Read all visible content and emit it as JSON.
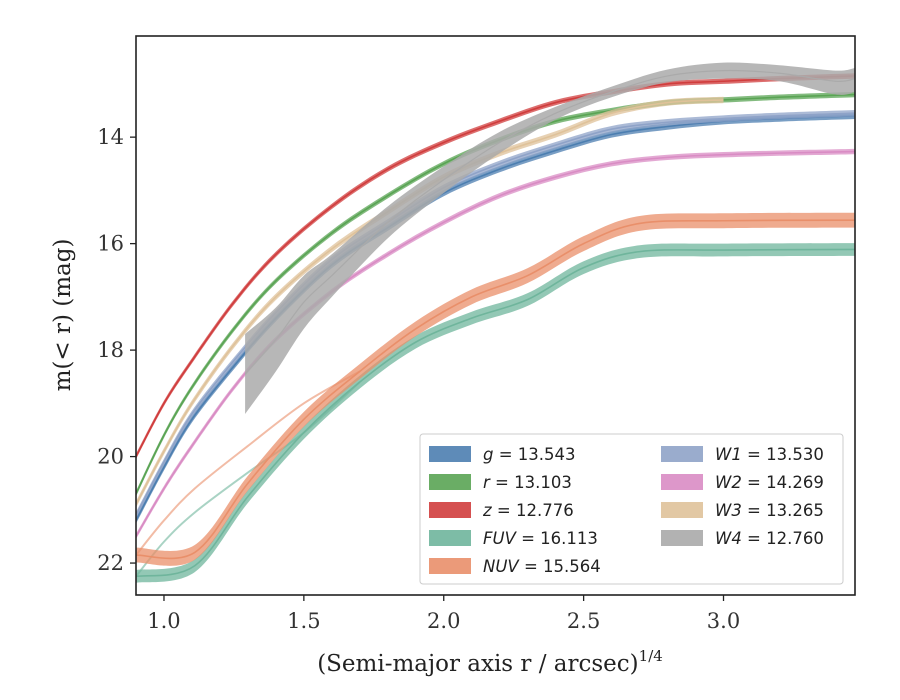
{
  "chart_data": {
    "type": "line",
    "xlabel": "(Semi-major axis r / arcsec)",
    "xlabel_exponent": "1/4",
    "ylabel": "m(< r) (mag)",
    "xlim": [
      0.9,
      3.47
    ],
    "ylim": [
      22.6,
      12.1
    ],
    "y_inverted": true,
    "x_ticks": [
      1.0,
      1.5,
      2.0,
      2.5,
      3.0
    ],
    "x_tick_labels": [
      "1.0",
      "1.5",
      "2.0",
      "2.5",
      "3.0"
    ],
    "y_ticks": [
      14,
      16,
      18,
      20,
      22
    ],
    "y_tick_labels": [
      "14",
      "16",
      "18",
      "20",
      "22"
    ],
    "grid": false,
    "legend_position": "lower-right",
    "legend_columns": 2,
    "series": [
      {
        "name": "g",
        "label": "g = 13.543",
        "color": "#4c7eb0",
        "x": [
          0.9,
          1.0,
          1.1,
          1.25,
          1.4,
          1.6,
          1.8,
          2.0,
          2.2,
          2.4,
          2.6,
          2.8,
          3.0,
          3.2,
          3.47
        ],
        "y": [
          21.2,
          20.2,
          19.3,
          18.3,
          17.4,
          16.4,
          15.7,
          15.05,
          14.6,
          14.25,
          13.95,
          13.8,
          13.7,
          13.65,
          13.6
        ],
        "band": 0.06
      },
      {
        "name": "r",
        "label": "r = 13.103",
        "color": "#5aa454",
        "x": [
          0.9,
          1.0,
          1.1,
          1.25,
          1.4,
          1.6,
          1.8,
          2.0,
          2.2,
          2.4,
          2.6,
          2.8,
          3.0,
          3.2,
          3.47
        ],
        "y": [
          20.7,
          19.6,
          18.7,
          17.6,
          16.7,
          15.8,
          15.1,
          14.5,
          14.05,
          13.7,
          13.5,
          13.35,
          13.3,
          13.25,
          13.2
        ],
        "band": 0.05
      },
      {
        "name": "z",
        "label": "z = 12.776",
        "color": "#d03d3d",
        "x": [
          0.9,
          1.0,
          1.1,
          1.25,
          1.4,
          1.6,
          1.8,
          2.0,
          2.2,
          2.4,
          2.6,
          2.8,
          3.0,
          3.2,
          3.47
        ],
        "y": [
          20.0,
          19.0,
          18.2,
          17.1,
          16.2,
          15.3,
          14.6,
          14.1,
          13.7,
          13.35,
          13.15,
          13.0,
          12.95,
          12.9,
          12.85
        ],
        "band": 0.05
      },
      {
        "name": "FUV",
        "label": "FUV = 16.113",
        "color": "#6fb59c",
        "x": [
          0.9,
          1.11,
          1.3,
          1.5,
          1.7,
          1.9,
          2.1,
          2.3,
          2.5,
          2.7,
          3.0,
          3.47
        ],
        "y": [
          22.25,
          22.05,
          20.75,
          19.55,
          18.6,
          17.85,
          17.4,
          17.05,
          16.45,
          16.15,
          16.12,
          16.11
        ],
        "band": 0.12,
        "faint_prefix_x": [
          0.9,
          1.0,
          1.11,
          1.3,
          1.5,
          1.7
        ],
        "faint_prefix_y": [
          22.25,
          21.6,
          21.05,
          20.3,
          19.55,
          18.6
        ]
      },
      {
        "name": "NUV",
        "label": "NUV = 15.564",
        "color": "#e98f6a",
        "x": [
          0.9,
          1.11,
          1.3,
          1.5,
          1.7,
          1.9,
          2.1,
          2.3,
          2.5,
          2.7,
          3.0,
          3.47
        ],
        "y": [
          21.85,
          21.8,
          20.5,
          19.3,
          18.4,
          17.6,
          17.0,
          16.6,
          16.0,
          15.62,
          15.57,
          15.56
        ],
        "band": 0.14,
        "faint_prefix_x": [
          0.9,
          1.0,
          1.11,
          1.3,
          1.5,
          1.7
        ],
        "faint_prefix_y": [
          21.85,
          21.2,
          20.6,
          19.8,
          19.0,
          18.4
        ]
      },
      {
        "name": "W1",
        "label": "W1 = 13.530",
        "color": "#8fa3c8",
        "x": [
          0.9,
          1.0,
          1.1,
          1.25,
          1.4,
          1.6,
          1.8,
          2.0,
          2.2,
          2.4,
          2.6,
          2.8,
          3.0,
          3.2,
          3.47
        ],
        "y": [
          21.1,
          20.1,
          19.2,
          18.2,
          17.3,
          16.3,
          15.6,
          14.95,
          14.5,
          14.15,
          13.85,
          13.72,
          13.65,
          13.6,
          13.55
        ],
        "band": 0.06
      },
      {
        "name": "W2",
        "label": "W2 = 14.269",
        "color": "#d98cc4",
        "x": [
          0.9,
          1.0,
          1.1,
          1.25,
          1.4,
          1.6,
          1.8,
          2.0,
          2.2,
          2.4,
          2.6,
          2.8,
          3.0,
          3.2,
          3.47
        ],
        "y": [
          21.5,
          20.6,
          19.8,
          18.7,
          17.8,
          16.9,
          16.2,
          15.6,
          15.1,
          14.75,
          14.5,
          14.38,
          14.33,
          14.3,
          14.27
        ],
        "band": 0.05
      },
      {
        "name": "W3",
        "label": "W3 = 13.265",
        "color": "#dfc29a",
        "x": [
          0.9,
          1.0,
          1.1,
          1.25,
          1.4,
          1.6,
          1.8,
          2.0,
          2.2,
          2.4,
          2.6,
          2.8,
          3.0
        ],
        "y": [
          20.9,
          19.9,
          19.0,
          17.9,
          17.0,
          16.1,
          15.4,
          14.75,
          14.3,
          13.95,
          13.55,
          13.35,
          13.3
        ],
        "band": 0.06
      },
      {
        "name": "W4",
        "label": "W4 = 12.760",
        "color": "#aaaaaa",
        "x": [
          1.29,
          1.4,
          1.5,
          1.6,
          1.8,
          2.0,
          2.2,
          2.4,
          2.6,
          2.8,
          3.0,
          3.2,
          3.4,
          3.47
        ],
        "y": [
          18.45,
          17.8,
          17.1,
          16.6,
          15.6,
          14.8,
          14.1,
          13.55,
          13.15,
          12.85,
          12.75,
          12.8,
          12.95,
          12.9
        ],
        "band_upper": [
          0.75,
          0.6,
          0.5,
          0.4,
          0.3,
          0.25,
          0.2,
          0.12,
          0.1,
          0.12,
          0.15,
          0.15,
          0.2,
          0.2
        ],
        "band_lower": [
          0.75,
          0.6,
          0.5,
          0.4,
          0.3,
          0.25,
          0.2,
          0.12,
          0.1,
          0.12,
          0.15,
          0.15,
          0.25,
          0.25
        ]
      }
    ],
    "legend": [
      {
        "symbol": "g",
        "value": "= 13.543"
      },
      {
        "symbol": "r",
        "value": "= 13.103"
      },
      {
        "symbol": "z",
        "value": "= 12.776"
      },
      {
        "symbol": "FUV",
        "value": "= 16.113"
      },
      {
        "symbol": "NUV",
        "value": "= 15.564"
      },
      {
        "symbol": "W1",
        "value": "= 13.530"
      },
      {
        "symbol": "W2",
        "value": "= 14.269"
      },
      {
        "symbol": "W3",
        "value": "= 13.265"
      },
      {
        "symbol": "W4",
        "value": "= 12.760"
      }
    ]
  }
}
